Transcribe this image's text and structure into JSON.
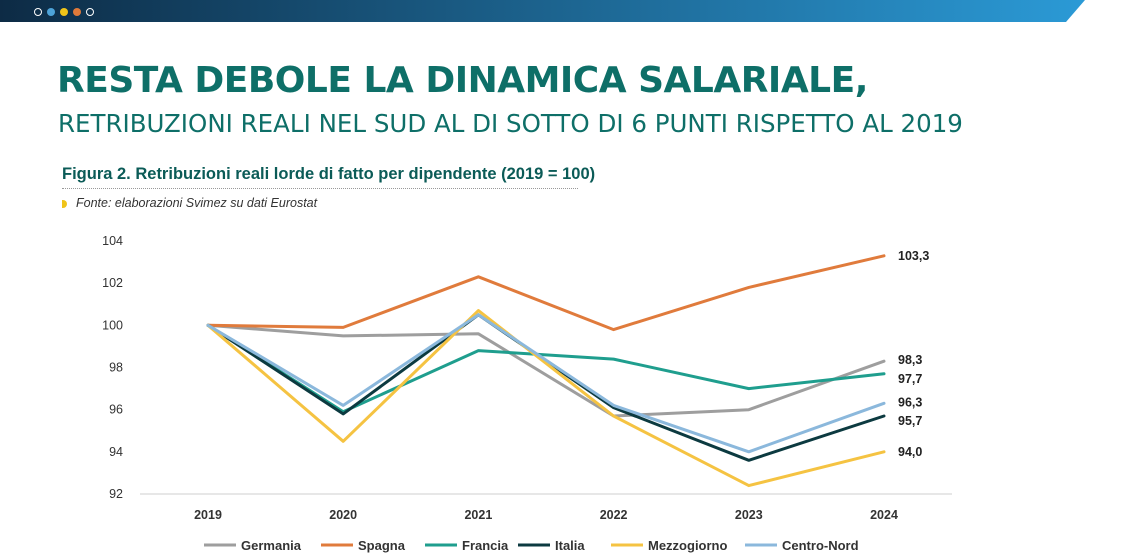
{
  "header": {
    "dots": [
      "#ffffff",
      "#4da3d8",
      "#f0c419",
      "#e07a3a",
      "#ffffff"
    ],
    "bar_colors": [
      "#0d2b45",
      "#2b9ad6"
    ]
  },
  "title": "RESTA DEBOLE LA DINAMICA SALARIALE,",
  "subtitle": "RETRIBUZIONI REALI NEL SUD AL DI SOTTO DI 6 PUNTI RISPETTO AL 2019",
  "colors": {
    "title": "#0e6f68",
    "subtitle": "#0e6f68",
    "figure_title": "#0b5b57",
    "source_bullet": "#f0c419"
  },
  "figure": {
    "title": "Figura 2. Retribuzioni reali lorde di fatto per dipendente (2019 = 100)",
    "source": "Fonte: elaborazioni Svimez su dati Eurostat"
  },
  "chart_data": {
    "type": "line",
    "x": [
      "2019",
      "2020",
      "2021",
      "2022",
      "2023",
      "2024"
    ],
    "ylim": [
      92,
      104
    ],
    "yticks": [
      92,
      94,
      96,
      98,
      100,
      102,
      104
    ],
    "grid": false,
    "legend_position": "bottom",
    "series": [
      {
        "name": "Germania",
        "color": "#9e9e9e",
        "values": [
          100,
          99.5,
          99.6,
          95.7,
          96.0,
          98.3
        ],
        "end_label": "98,3"
      },
      {
        "name": "Spagna",
        "color": "#e07b3c",
        "values": [
          100,
          99.9,
          102.3,
          99.8,
          101.8,
          103.3
        ],
        "end_label": "103,3"
      },
      {
        "name": "Francia",
        "color": "#1f9e8e",
        "values": [
          100,
          95.9,
          98.8,
          98.4,
          97.0,
          97.7
        ],
        "end_label": "97,7"
      },
      {
        "name": "Italia",
        "color": "#0c3a40",
        "values": [
          100,
          95.8,
          100.5,
          96.1,
          93.6,
          95.7
        ],
        "end_label": "95,7"
      },
      {
        "name": "Mezzogiorno",
        "color": "#f5c342",
        "values": [
          100,
          94.5,
          100.7,
          95.7,
          92.4,
          94.0
        ],
        "end_label": "94,0"
      },
      {
        "name": "Centro-Nord",
        "color": "#8bb8dc",
        "values": [
          100,
          96.2,
          100.5,
          96.2,
          94.0,
          96.3
        ],
        "end_label": "96,3"
      }
    ]
  }
}
